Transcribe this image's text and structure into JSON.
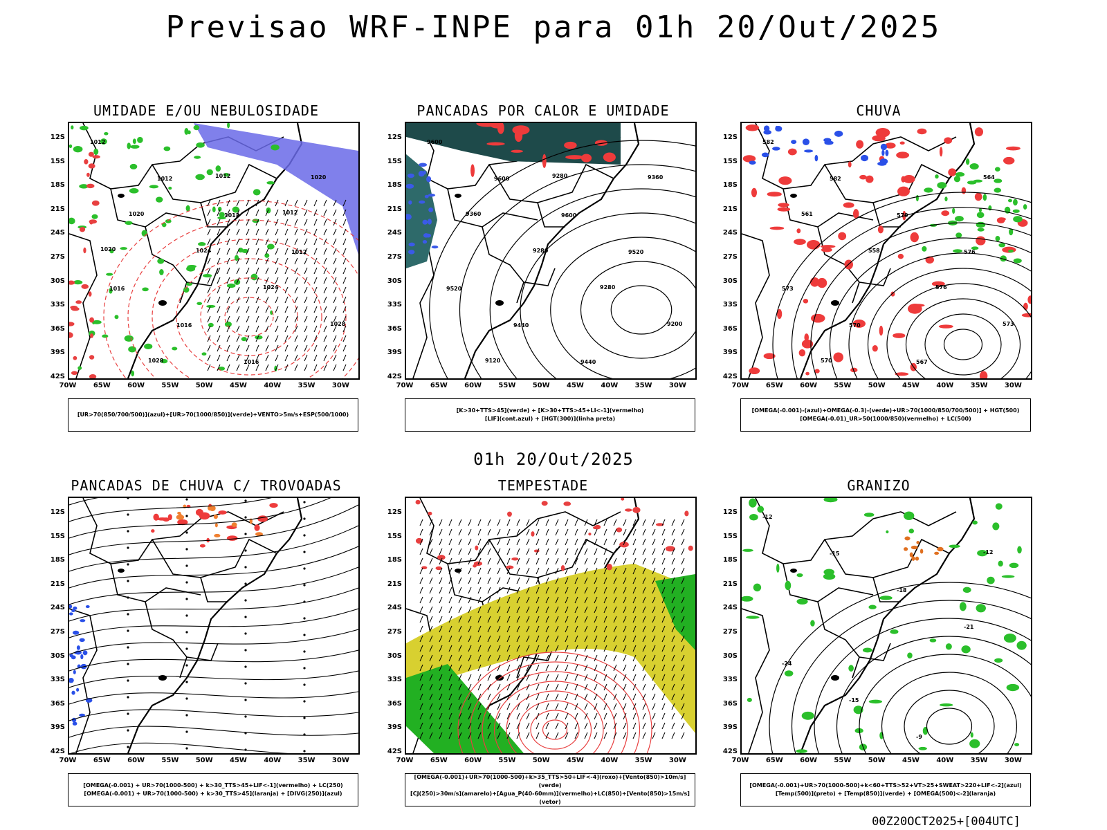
{
  "header": {
    "title": "Previsao WRF-INPE  para 01h 20/Out/2025"
  },
  "middle": {
    "subtitle": "01h 20/Out/2025"
  },
  "footer": {
    "run": "00Z20OCT2025+[004UTC]"
  },
  "axes": {
    "lat_labels": [
      "12S",
      "15S",
      "18S",
      "21S",
      "24S",
      "27S",
      "30S",
      "33S",
      "36S",
      "39S",
      "42S"
    ],
    "lon_labels": [
      "70W",
      "65W",
      "60W",
      "55W",
      "50W",
      "45W",
      "40W",
      "35W",
      "30W"
    ]
  },
  "panels": [
    {
      "title": "UMIDADE E/OU NEBULOSIDADE",
      "legend": [
        "[UR>70(850/700/500)](azul)+[UR>70(1000/850)](verde)+VENTO>5m/s+ESP(500/1000)"
      ],
      "contour_labels": [
        "1012",
        "1012",
        "1012",
        "1012",
        "1016",
        "1016",
        "1016",
        "1020",
        "1020",
        "1024",
        "1024",
        "1028",
        "1028",
        "1012",
        "1012",
        "1020"
      ]
    },
    {
      "title": "PANCADAS POR CALOR E UMIDADE",
      "legend": [
        "[K>30+TTS>45](verde) + [K>30+TTS>45+LI<-1](vermelho)",
        "[LIF](cont.azul) + [HGT(300)](linha preta)"
      ],
      "contour_labels": [
        "9600",
        "9600",
        "9600",
        "9520",
        "9520",
        "9440",
        "9440",
        "9360",
        "9360",
        "9280",
        "9280",
        "9200",
        "9120",
        "9280"
      ]
    },
    {
      "title": "CHUVA",
      "legend": [
        "[OMEGA(-0.001)-(azul)+OMEGA(-0.3)-(verde)+UR>70(1000/850/700/500)] + HGT(500)",
        "[OMEGA(-0.01)_UR>50(1000/850)(vermelho) + LC(500)"
      ],
      "contour_labels": [
        "582",
        "582",
        "579",
        "576",
        "573",
        "570",
        "567",
        "564",
        "561",
        "558",
        "576",
        "573",
        "570"
      ]
    },
    {
      "title": "PANCADAS DE CHUVA C/ TROVOADAS",
      "legend": [
        "[OMEGA(-0.001) + UR>70(1000-500) + k>30_TTS>45+LIF<-1](vermelho) + LC(250)",
        "[OMEGA(-0.001) + UR>70(1000-500) + k>30_TTS>45](laranja) + [DIVG(250)](azul)"
      ],
      "contour_labels": []
    },
    {
      "title": "TEMPESTADE",
      "legend": [
        "[OMEGA(-0.001)+UR>70(1000-500)+k>35_TTS>50+LIF<-4](roxo)+[Vento(850)>10m/s](verde)",
        "[CJ(250)>30m/s](amarelo)+[Agua_P(40-60mm)](vermelho)+LC(850)+[Vento(850)>15m/s](vetor)"
      ],
      "contour_labels": []
    },
    {
      "title": "GRANIZO",
      "legend": [
        "[OMEGA(-0.001)+UR>70(1000-500)+k<60+TTS>52+VT>25+SWEAT>220+LIF<-2](azul)",
        "[Temp(500)](preto) + [Temp(850)](verde) + [OMEGA(500)<-2](laranja)"
      ],
      "contour_labels": [
        "-12",
        "-15",
        "-18",
        "-21",
        "-24",
        "-15",
        "-9",
        "-12"
      ]
    }
  ]
}
